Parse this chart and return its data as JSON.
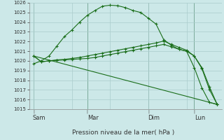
{
  "background_color": "#cce8e8",
  "grid_color": "#aacccc",
  "line_color": "#1a6e1a",
  "title": "Pression niveau de la mer( hPa )",
  "ylim": [
    1015,
    1026
  ],
  "day_labels": [
    "|  Sam",
    "Mar",
    "Dim",
    "Lun"
  ],
  "day_label_raw": [
    "Sam",
    "Mar",
    "Dim",
    "Lun"
  ],
  "day_positions": [
    0.0,
    3.5,
    7.5,
    10.5
  ],
  "vline_positions": [
    0.0,
    3.5,
    7.5,
    10.5
  ],
  "series1_x": [
    0,
    0.5,
    1.0,
    1.5,
    2.0,
    2.5,
    3.0,
    3.5,
    4.0,
    4.5,
    5.0,
    5.5,
    6.0,
    6.5,
    7.0,
    7.5,
    8.0,
    8.5,
    9.0,
    9.5,
    10.0,
    10.5,
    11.0,
    11.5,
    12.0
  ],
  "series1_y": [
    1019.7,
    1020.0,
    1020.5,
    1021.5,
    1022.5,
    1023.2,
    1024.0,
    1024.7,
    1025.2,
    1025.65,
    1025.75,
    1025.7,
    1025.5,
    1025.2,
    1025.0,
    1024.4,
    1023.8,
    1022.2,
    1021.6,
    1021.2,
    1021.0,
    1019.3,
    1017.2,
    1015.7,
    1015.5
  ],
  "series2_x": [
    0,
    0.5,
    1.0,
    1.5,
    2.0,
    2.5,
    3.0,
    3.5,
    4.0,
    4.5,
    5.0,
    5.5,
    6.0,
    6.5,
    7.0,
    7.5,
    8.0,
    8.5,
    9.0,
    9.5,
    10.0,
    10.5,
    11.0,
    11.5,
    12.0
  ],
  "series2_y": [
    1020.5,
    1019.9,
    1020.0,
    1020.05,
    1020.1,
    1020.15,
    1020.2,
    1020.25,
    1020.35,
    1020.5,
    1020.65,
    1020.8,
    1020.95,
    1021.1,
    1021.25,
    1021.4,
    1021.55,
    1021.7,
    1021.45,
    1021.2,
    1021.0,
    1020.5,
    1019.3,
    1017.3,
    1015.5
  ],
  "series3_x": [
    0,
    0.5,
    1.0,
    1.5,
    2.0,
    2.5,
    3.0,
    3.5,
    4.0,
    4.5,
    5.0,
    5.5,
    6.0,
    6.5,
    7.0,
    7.5,
    8.0,
    8.5,
    9.0,
    9.5,
    10.0,
    10.5,
    11.0,
    11.5,
    12.0
  ],
  "series3_y": [
    1020.5,
    1019.9,
    1020.0,
    1020.1,
    1020.15,
    1020.25,
    1020.35,
    1020.5,
    1020.65,
    1020.8,
    1020.95,
    1021.1,
    1021.25,
    1021.4,
    1021.55,
    1021.7,
    1021.85,
    1022.05,
    1021.7,
    1021.4,
    1021.1,
    1020.5,
    1019.2,
    1017.0,
    1015.5
  ],
  "series4_x": [
    0,
    12.0
  ],
  "series4_y": [
    1020.5,
    1015.5
  ],
  "xlim": [
    -0.3,
    12.3
  ]
}
